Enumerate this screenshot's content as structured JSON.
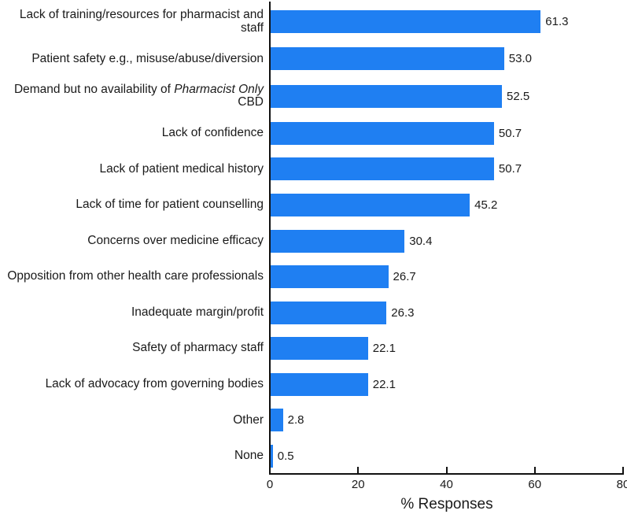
{
  "chart_data": {
    "type": "bar",
    "orientation": "horizontal",
    "title": "",
    "xlabel": "% Responses",
    "ylabel": "",
    "xlim": [
      0,
      80
    ],
    "x_ticks": [
      "0",
      "20",
      "40",
      "60",
      "80"
    ],
    "grid": false,
    "legend": false,
    "bar_color": "#1f7ff2",
    "axis_color": "#111111",
    "categories": [
      "Lack of training/resources for pharmacist and staff",
      "Patient safety e.g., misuse/abuse/diversion",
      "Demand but no availability of Pharmacist Only CBD",
      "Lack of confidence",
      "Lack of patient medical history",
      "Lack of time for patient counselling",
      "Concerns over medicine efficacy",
      "Opposition from other health care professionals",
      "Inadequate margin/profit",
      "Safety of pharmacy staff",
      "Lack of advocacy from governing bodies",
      "Other",
      "None"
    ],
    "values": [
      61.3,
      53.0,
      52.5,
      50.7,
      50.7,
      45.2,
      30.4,
      26.7,
      26.3,
      22.1,
      22.1,
      2.8,
      0.5
    ],
    "items": [
      {
        "label": "Lack of training/resources for pharmacist and staff",
        "value": 61.3,
        "value_label": "61.3"
      },
      {
        "label": "Patient safety e.g., misuse/abuse/diversion",
        "value": 53.0,
        "value_label": "53.0"
      },
      {
        "label": "Demand but no availability of Pharmacist Only CBD",
        "italic_part": "Pharmacist Only",
        "value": 52.5,
        "value_label": "52.5"
      },
      {
        "label": "Lack of confidence",
        "value": 50.7,
        "value_label": "50.7"
      },
      {
        "label": "Lack of patient medical history",
        "value": 50.7,
        "value_label": "50.7"
      },
      {
        "label": "Lack of time for patient counselling",
        "value": 45.2,
        "value_label": "45.2"
      },
      {
        "label": "Concerns over medicine efficacy",
        "value": 30.4,
        "value_label": "30.4"
      },
      {
        "label": "Opposition from other health care professionals",
        "value": 26.7,
        "value_label": "26.7"
      },
      {
        "label": "Inadequate margin/profit",
        "value": 26.3,
        "value_label": "26.3"
      },
      {
        "label": "Safety of pharmacy staff",
        "value": 22.1,
        "value_label": "22.1"
      },
      {
        "label": "Lack of advocacy from governing bodies",
        "value": 22.1,
        "value_label": "22.1"
      },
      {
        "label": "Other",
        "value": 2.8,
        "value_label": "2.8"
      },
      {
        "label": "None",
        "value": 0.5,
        "value_label": "0.5"
      }
    ]
  }
}
